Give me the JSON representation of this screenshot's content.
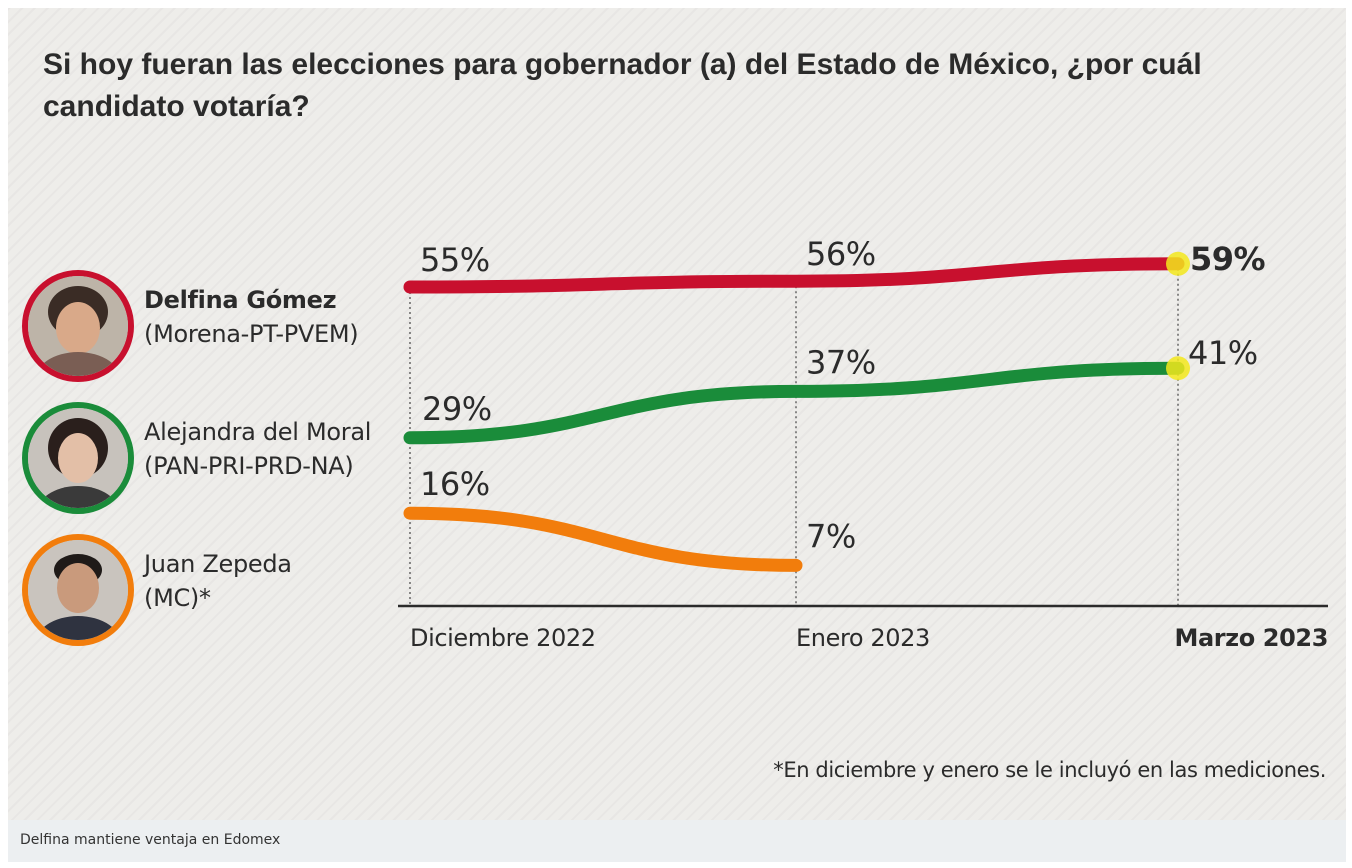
{
  "chart_data": {
    "type": "line",
    "title": "Si hoy fueran las elecciones para gobernador (a) del Estado de México, ¿por cuál candidato votaría?",
    "categories": [
      "Diciembre 2022",
      "Enero 2023",
      "Marzo 2023"
    ],
    "series": [
      {
        "name": "Delfina Gómez",
        "party": "(Morena-PT-PVEM)",
        "color": "#c8102e",
        "values": [
          55,
          56,
          59
        ],
        "labels": [
          "55%",
          "56%",
          "59%"
        ]
      },
      {
        "name": "Alejandra del Moral",
        "party": "(PAN-PRI-PRD-NA)",
        "color": "#1a8c3a",
        "values": [
          29,
          37,
          41
        ],
        "labels": [
          "29%",
          "37%",
          "41%"
        ]
      },
      {
        "name": "Juan Zepeda",
        "party": "(MC)*",
        "color": "#f27d0c",
        "values": [
          16,
          7,
          null
        ],
        "labels": [
          "16%",
          "7%",
          ""
        ]
      }
    ],
    "highlight_color": "#f3e81c",
    "grid": false,
    "legend": "left"
  },
  "footnote": "*En diciembre y enero se le incluyó en las mediciones.",
  "caption": "Delfina mantiene ventaja en Edomex"
}
